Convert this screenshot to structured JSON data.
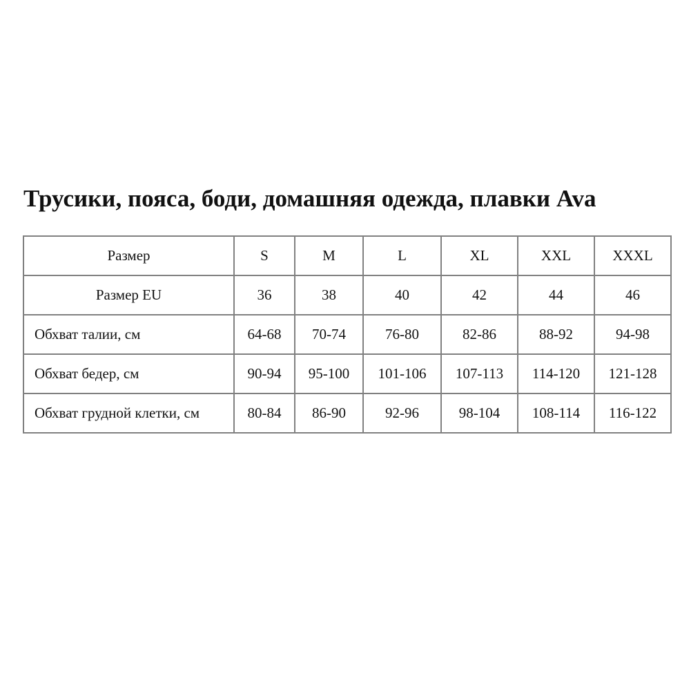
{
  "title": "Трусики, пояса, боди, домашняя одежда, плавки Ava",
  "table": {
    "rows": [
      {
        "label": "Размер",
        "align": "center",
        "cells": [
          "S",
          "M",
          "L",
          "XL",
          "XXL",
          "XXXL"
        ]
      },
      {
        "label": "Размер EU",
        "align": "center",
        "cells": [
          "36",
          "38",
          "40",
          "42",
          "44",
          "46"
        ]
      },
      {
        "label": "Обхват талии, см",
        "align": "left",
        "cells": [
          "64-68",
          "70-74",
          "76-80",
          "82-86",
          "88-92",
          "94-98"
        ]
      },
      {
        "label": "Обхват бедер, см",
        "align": "left",
        "cells": [
          "90-94",
          "95-100",
          "101-106",
          "107-113",
          "114-120",
          "121-128"
        ]
      },
      {
        "label": "Обхват грудной клетки, см",
        "align": "left",
        "cells": [
          "80-84",
          "86-90",
          "92-96",
          "98-104",
          "108-114",
          "116-122"
        ]
      }
    ]
  },
  "colors": {
    "border": "#808080",
    "text": "#111111"
  }
}
